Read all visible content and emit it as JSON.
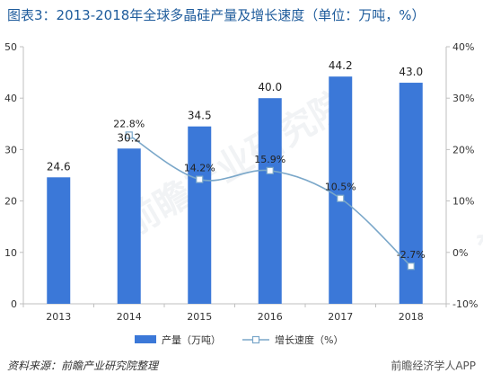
{
  "title": "图表3：2013-2018年全球多晶硅产量及增长速度（单位：万吨，%）",
  "source": "资料来源：前瞻产业研究院整理",
  "brand": "前瞻经济学人APP",
  "watermark": "前瞻产业研究院",
  "colors": {
    "bar": "#3b78d8",
    "line": "#7aa7c9",
    "marker": "#ffffff",
    "axis": "#bfbfbf",
    "title": "#1f5c9c"
  },
  "chart_data": {
    "type": "bar",
    "categories": [
      "2013",
      "2014",
      "2015",
      "2016",
      "2017",
      "2018"
    ],
    "series": [
      {
        "name": "产量（万吨）",
        "type": "bar",
        "axis": "left",
        "values": [
          24.6,
          30.2,
          34.5,
          40.0,
          44.2,
          43.0
        ],
        "labels": [
          "24.6",
          "30.2",
          "34.5",
          "40.0",
          "44.2",
          "43.0"
        ]
      },
      {
        "name": "增长速度（%）",
        "type": "line",
        "axis": "right",
        "values": [
          null,
          22.8,
          14.2,
          15.9,
          10.5,
          -2.7
        ],
        "labels": [
          "",
          "22.8%",
          "14.2%",
          "15.9%",
          "10.5%",
          "-2.7%"
        ]
      }
    ],
    "ylim_left": [
      0,
      50
    ],
    "yticks_left": [
      "0",
      "10",
      "20",
      "30",
      "40",
      "50"
    ],
    "ylim_right": [
      -10,
      40
    ],
    "yticks_right": [
      "-10%",
      "0%",
      "10%",
      "20%",
      "30%",
      "40%"
    ],
    "legend_position": "bottom",
    "grid": false
  }
}
